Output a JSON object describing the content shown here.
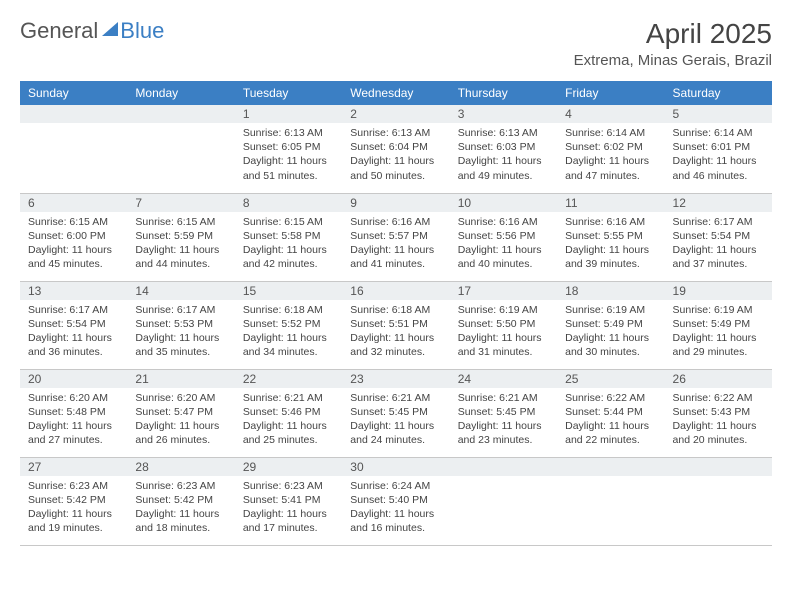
{
  "brand": {
    "part1": "General",
    "part2": "Blue"
  },
  "title": "April 2025",
  "location": "Extrema, Minas Gerais, Brazil",
  "colors": {
    "header_bg": "#3b7fc4",
    "header_text": "#ffffff",
    "daynum_bg": "#eceff1",
    "grid_line": "#c8c8c8",
    "text": "#444444",
    "page_bg": "#ffffff"
  },
  "day_headers": [
    "Sunday",
    "Monday",
    "Tuesday",
    "Wednesday",
    "Thursday",
    "Friday",
    "Saturday"
  ],
  "weeks": [
    [
      {
        "n": "",
        "sunrise": "",
        "sunset": "",
        "daylight": ""
      },
      {
        "n": "",
        "sunrise": "",
        "sunset": "",
        "daylight": ""
      },
      {
        "n": "1",
        "sunrise": "Sunrise: 6:13 AM",
        "sunset": "Sunset: 6:05 PM",
        "daylight": "Daylight: 11 hours and 51 minutes."
      },
      {
        "n": "2",
        "sunrise": "Sunrise: 6:13 AM",
        "sunset": "Sunset: 6:04 PM",
        "daylight": "Daylight: 11 hours and 50 minutes."
      },
      {
        "n": "3",
        "sunrise": "Sunrise: 6:13 AM",
        "sunset": "Sunset: 6:03 PM",
        "daylight": "Daylight: 11 hours and 49 minutes."
      },
      {
        "n": "4",
        "sunrise": "Sunrise: 6:14 AM",
        "sunset": "Sunset: 6:02 PM",
        "daylight": "Daylight: 11 hours and 47 minutes."
      },
      {
        "n": "5",
        "sunrise": "Sunrise: 6:14 AM",
        "sunset": "Sunset: 6:01 PM",
        "daylight": "Daylight: 11 hours and 46 minutes."
      }
    ],
    [
      {
        "n": "6",
        "sunrise": "Sunrise: 6:15 AM",
        "sunset": "Sunset: 6:00 PM",
        "daylight": "Daylight: 11 hours and 45 minutes."
      },
      {
        "n": "7",
        "sunrise": "Sunrise: 6:15 AM",
        "sunset": "Sunset: 5:59 PM",
        "daylight": "Daylight: 11 hours and 44 minutes."
      },
      {
        "n": "8",
        "sunrise": "Sunrise: 6:15 AM",
        "sunset": "Sunset: 5:58 PM",
        "daylight": "Daylight: 11 hours and 42 minutes."
      },
      {
        "n": "9",
        "sunrise": "Sunrise: 6:16 AM",
        "sunset": "Sunset: 5:57 PM",
        "daylight": "Daylight: 11 hours and 41 minutes."
      },
      {
        "n": "10",
        "sunrise": "Sunrise: 6:16 AM",
        "sunset": "Sunset: 5:56 PM",
        "daylight": "Daylight: 11 hours and 40 minutes."
      },
      {
        "n": "11",
        "sunrise": "Sunrise: 6:16 AM",
        "sunset": "Sunset: 5:55 PM",
        "daylight": "Daylight: 11 hours and 39 minutes."
      },
      {
        "n": "12",
        "sunrise": "Sunrise: 6:17 AM",
        "sunset": "Sunset: 5:54 PM",
        "daylight": "Daylight: 11 hours and 37 minutes."
      }
    ],
    [
      {
        "n": "13",
        "sunrise": "Sunrise: 6:17 AM",
        "sunset": "Sunset: 5:54 PM",
        "daylight": "Daylight: 11 hours and 36 minutes."
      },
      {
        "n": "14",
        "sunrise": "Sunrise: 6:17 AM",
        "sunset": "Sunset: 5:53 PM",
        "daylight": "Daylight: 11 hours and 35 minutes."
      },
      {
        "n": "15",
        "sunrise": "Sunrise: 6:18 AM",
        "sunset": "Sunset: 5:52 PM",
        "daylight": "Daylight: 11 hours and 34 minutes."
      },
      {
        "n": "16",
        "sunrise": "Sunrise: 6:18 AM",
        "sunset": "Sunset: 5:51 PM",
        "daylight": "Daylight: 11 hours and 32 minutes."
      },
      {
        "n": "17",
        "sunrise": "Sunrise: 6:19 AM",
        "sunset": "Sunset: 5:50 PM",
        "daylight": "Daylight: 11 hours and 31 minutes."
      },
      {
        "n": "18",
        "sunrise": "Sunrise: 6:19 AM",
        "sunset": "Sunset: 5:49 PM",
        "daylight": "Daylight: 11 hours and 30 minutes."
      },
      {
        "n": "19",
        "sunrise": "Sunrise: 6:19 AM",
        "sunset": "Sunset: 5:49 PM",
        "daylight": "Daylight: 11 hours and 29 minutes."
      }
    ],
    [
      {
        "n": "20",
        "sunrise": "Sunrise: 6:20 AM",
        "sunset": "Sunset: 5:48 PM",
        "daylight": "Daylight: 11 hours and 27 minutes."
      },
      {
        "n": "21",
        "sunrise": "Sunrise: 6:20 AM",
        "sunset": "Sunset: 5:47 PM",
        "daylight": "Daylight: 11 hours and 26 minutes."
      },
      {
        "n": "22",
        "sunrise": "Sunrise: 6:21 AM",
        "sunset": "Sunset: 5:46 PM",
        "daylight": "Daylight: 11 hours and 25 minutes."
      },
      {
        "n": "23",
        "sunrise": "Sunrise: 6:21 AM",
        "sunset": "Sunset: 5:45 PM",
        "daylight": "Daylight: 11 hours and 24 minutes."
      },
      {
        "n": "24",
        "sunrise": "Sunrise: 6:21 AM",
        "sunset": "Sunset: 5:45 PM",
        "daylight": "Daylight: 11 hours and 23 minutes."
      },
      {
        "n": "25",
        "sunrise": "Sunrise: 6:22 AM",
        "sunset": "Sunset: 5:44 PM",
        "daylight": "Daylight: 11 hours and 22 minutes."
      },
      {
        "n": "26",
        "sunrise": "Sunrise: 6:22 AM",
        "sunset": "Sunset: 5:43 PM",
        "daylight": "Daylight: 11 hours and 20 minutes."
      }
    ],
    [
      {
        "n": "27",
        "sunrise": "Sunrise: 6:23 AM",
        "sunset": "Sunset: 5:42 PM",
        "daylight": "Daylight: 11 hours and 19 minutes."
      },
      {
        "n": "28",
        "sunrise": "Sunrise: 6:23 AM",
        "sunset": "Sunset: 5:42 PM",
        "daylight": "Daylight: 11 hours and 18 minutes."
      },
      {
        "n": "29",
        "sunrise": "Sunrise: 6:23 AM",
        "sunset": "Sunset: 5:41 PM",
        "daylight": "Daylight: 11 hours and 17 minutes."
      },
      {
        "n": "30",
        "sunrise": "Sunrise: 6:24 AM",
        "sunset": "Sunset: 5:40 PM",
        "daylight": "Daylight: 11 hours and 16 minutes."
      },
      {
        "n": "",
        "sunrise": "",
        "sunset": "",
        "daylight": ""
      },
      {
        "n": "",
        "sunrise": "",
        "sunset": "",
        "daylight": ""
      },
      {
        "n": "",
        "sunrise": "",
        "sunset": "",
        "daylight": ""
      }
    ]
  ]
}
